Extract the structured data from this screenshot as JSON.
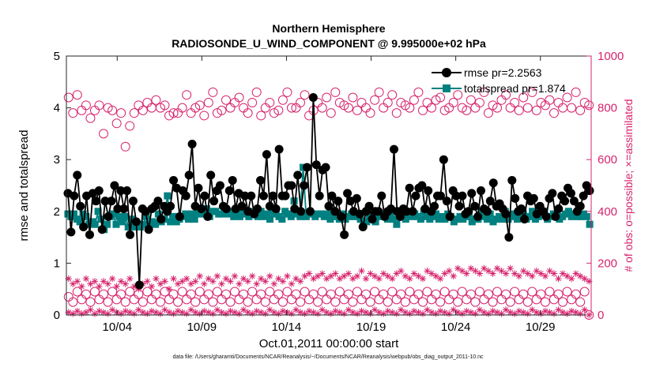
{
  "chart_data": {
    "type": "line",
    "title_line1": "Northern Hemisphere",
    "title_line2": "RADIOSONDE_U_WIND_COMPONENT @ 9.995000e+02 hPa",
    "xlabel": "Oct.01,2011 00:00:00 start",
    "ylabel_left": "rmse and totalspread",
    "ylabel_right": "# of obs: o=possible; ×=assimilated",
    "xlim": [
      0,
      124
    ],
    "ylim_left": [
      0,
      5
    ],
    "ylim_right": [
      0,
      1000
    ],
    "xticks": [
      12,
      32,
      52,
      72,
      92,
      112
    ],
    "xtick_labels": [
      "10/04",
      "10/09",
      "10/14",
      "10/19",
      "10/24",
      "10/29"
    ],
    "yticks_left": [
      "0",
      "1",
      "2",
      "3",
      "4",
      "5"
    ],
    "yticks_right": [
      "0",
      "200",
      "400",
      "600",
      "800",
      "1000"
    ],
    "legend": [
      "rmse pr=2.2563",
      "totalspread pr=1.874"
    ],
    "colors": {
      "rmse": "#000000",
      "spread": "#008080",
      "obs": "#d6246e"
    },
    "footer": "data file: /Users/gharamti/Documents/NCAR/Reanalysis/~/Documents/NCAR/Reanalysis/webpub/obs_diag_output_2011-10.nc",
    "series": [
      {
        "name": "rmse",
        "values": [
          2.35,
          1.6,
          2.3,
          2.7,
          2.1,
          1.7,
          2.3,
          1.55,
          2.35,
          2.2,
          2.4,
          1.65,
          2.2,
          1.9,
          2.2,
          2.5,
          2.05,
          2.4,
          2.05,
          2.4,
          1.55,
          2.2,
          1.8,
          0.58,
          2.05,
          2.0,
          1.65,
          2.05,
          2.1,
          2.2,
          1.85,
          2.1,
          2.0,
          2.1,
          2.6,
          2.45,
          1.9,
          2.4,
          2.3,
          2.7,
          3.3,
          2.1,
          2.45,
          2.05,
          2.3,
          1.9,
          2.7,
          2.2,
          2.4,
          2.5,
          2.1,
          2.05,
          2.4,
          2.6,
          2.05,
          2.35,
          2.1,
          2.3,
          2.0,
          2.3,
          1.95,
          2.05,
          2.6,
          2.3,
          3.1,
          2.1,
          2.3,
          2.05,
          3.2,
          2.3,
          2.3,
          2.5,
          2.5,
          2.05,
          2.7,
          2.0,
          2.5,
          2.85,
          2.0,
          4.2,
          2.9,
          2.3,
          2.8,
          2.85,
          2.1,
          2.3,
          2.0,
          2.2,
          1.9,
          1.55,
          2.35,
          2.2,
          2.0,
          2.25,
          1.95,
          1.7,
          2.0,
          2.1,
          1.85,
          2.0,
          2.0,
          2.3,
          1.9,
          2.0,
          2.05,
          3.2,
          2.0,
          1.9,
          2.05,
          2.0,
          2.45,
          2.0,
          2.3,
          2.45,
          2.5,
          2.05,
          2.4,
          2.0,
          2.1,
          2.3,
          2.3,
          3.0,
          2.2,
          1.9,
          2.4,
          2.3,
          2.1,
          2.3,
          1.95,
          2.0,
          2.35,
          2.1,
          1.9,
          2.4,
          2.05,
          2.0,
          2.2,
          2.55,
          2.1,
          2.15,
          2.05,
          1.95,
          1.5,
          2.6,
          2.25,
          2.0,
          2.05,
          1.85,
          2.3,
          2.2,
          2.25,
          1.95,
          2.1,
          2.0,
          1.9,
          2.25,
          2.35,
          1.9,
          2.05,
          2.3,
          2.2,
          2.45,
          2.35,
          2.2,
          2.0,
          2.1,
          2.3,
          2.5,
          2.4
        ]
      },
      {
        "name": "totalspread",
        "values": [
          1.95,
          1.9,
          1.95,
          1.85,
          1.8,
          1.95,
          1.9,
          1.75,
          1.8,
          1.75,
          2.0,
          1.85,
          1.65,
          1.75,
          1.9,
          1.95,
          1.75,
          1.9,
          1.8,
          1.9,
          1.7,
          1.85,
          1.7,
          1.75,
          1.7,
          1.75,
          1.9,
          1.75,
          1.8,
          1.75,
          1.95,
          1.8,
          1.85,
          2.3,
          1.8,
          1.9,
          1.8,
          1.85,
          1.9,
          1.95,
          1.85,
          1.95,
          1.85,
          1.95,
          2.05,
          1.95,
          2.05,
          1.9,
          2.0,
          2.0,
          1.95,
          1.95,
          2.05,
          1.95,
          2.0,
          1.9,
          1.95,
          1.9,
          2.05,
          1.95,
          1.9,
          1.95,
          2.0,
          1.9,
          2.0,
          1.9,
          1.95,
          1.85,
          2.0,
          1.95,
          1.9,
          1.85,
          2.0,
          1.95,
          1.9,
          2.2,
          1.95,
          1.9,
          2.85,
          1.9,
          1.95,
          1.95,
          1.9,
          1.95,
          1.95,
          1.9,
          1.95,
          1.85,
          1.95,
          1.9,
          1.85,
          1.95,
          1.85,
          1.9,
          1.95,
          1.9,
          1.95,
          1.85,
          1.75,
          1.8,
          1.9,
          1.85,
          1.8,
          1.9,
          1.95,
          1.9,
          1.85,
          1.95,
          1.85,
          1.75,
          1.9,
          1.95,
          1.85,
          1.95,
          1.9,
          1.95,
          1.9,
          1.85,
          2.0,
          1.9,
          1.85,
          1.9,
          1.95,
          1.85,
          1.9,
          1.85,
          1.95,
          1.9,
          1.8,
          1.85,
          1.9,
          1.85,
          1.9,
          1.95,
          1.8,
          1.85,
          1.85,
          2.0,
          1.9,
          1.85,
          1.95,
          1.8,
          1.85,
          1.9,
          1.85,
          2.0,
          1.85,
          1.9,
          1.95,
          1.85,
          1.9,
          1.95,
          1.85,
          1.9,
          2.0,
          1.85,
          1.9,
          1.95,
          2.0,
          1.85,
          1.9,
          1.95,
          1.9,
          1.85,
          1.9,
          1.95,
          2.0,
          1.9,
          1.95,
          1.9,
          1.9,
          1.95,
          1.9,
          1.75
        ]
      },
      {
        "name": "possible_upper",
        "values": [
          840,
          780,
          850,
          790,
          810,
          760,
          790,
          810,
          700,
          800,
          790,
          740,
          780,
          650,
          730,
          780,
          810,
          790,
          820,
          800,
          830,
          800,
          810,
          770,
          780,
          780,
          800,
          850,
          780,
          800,
          810,
          770,
          820,
          860,
          780,
          790,
          830,
          800,
          820,
          840,
          800,
          780,
          820,
          860,
          770,
          800,
          820,
          780,
          790,
          830,
          860,
          800,
          800,
          820,
          850,
          770,
          790,
          820,
          800,
          840,
          780,
          860,
          820,
          810,
          800,
          840,
          790,
          820,
          800,
          780,
          830,
          860,
          800,
          820,
          850,
          780,
          820,
          810,
          800,
          830,
          860,
          790,
          820,
          800,
          830,
          840,
          790,
          800,
          820,
          850,
          800,
          790,
          830,
          800,
          820,
          860,
          780,
          810,
          800,
          830,
          850,
          800,
          820,
          790,
          840,
          800,
          860,
          790,
          820,
          810,
          830,
          780,
          820,
          800,
          840,
          800,
          860,
          790,
          820,
          810
        ]
      },
      {
        "name": "possible_lower",
        "values": [
          70,
          50,
          90,
          60,
          80,
          50,
          90,
          60,
          80,
          50,
          90,
          60,
          80,
          50,
          90,
          60,
          80,
          50,
          90,
          60,
          80,
          50,
          90,
          60,
          80,
          50,
          90,
          60,
          80,
          50,
          90,
          60,
          80,
          50,
          90,
          60,
          80,
          50,
          90,
          60,
          80,
          50,
          90,
          60,
          80,
          50,
          90,
          60,
          80,
          50,
          90,
          60,
          80,
          50,
          90,
          60,
          80,
          50,
          90,
          60,
          80,
          50,
          90,
          60,
          80,
          50,
          90,
          60,
          80,
          50,
          90,
          60,
          80,
          50,
          90,
          60,
          80,
          50,
          90,
          60,
          80,
          50,
          90,
          60,
          80,
          50,
          90,
          60,
          80,
          50,
          90,
          60,
          80,
          50,
          90,
          60,
          80,
          50,
          90,
          60,
          80,
          50,
          90,
          60,
          80,
          50,
          90,
          60,
          80,
          50,
          90,
          60,
          80,
          50,
          90,
          60,
          80,
          50,
          90,
          0
        ]
      },
      {
        "name": "assimilated_upper",
        "values": [
          140,
          120,
          130,
          110,
          140,
          120,
          130,
          110,
          130,
          120,
          140,
          110,
          130,
          120,
          140,
          110,
          100,
          120,
          130,
          110,
          140,
          120,
          130,
          100,
          140,
          120,
          130,
          140,
          120,
          130,
          150,
          120,
          140,
          130,
          150,
          120,
          140,
          130,
          150,
          120,
          140,
          130,
          150,
          120,
          140,
          130,
          150,
          120,
          140,
          130,
          150,
          120,
          140,
          130,
          150,
          160,
          140,
          150,
          160,
          140,
          150,
          160,
          140,
          150,
          160,
          140,
          150,
          170,
          140,
          160,
          150,
          140,
          160,
          150,
          140,
          160,
          170,
          150,
          140,
          160,
          150,
          140,
          170,
          160,
          150,
          140,
          160,
          170,
          150,
          180,
          170,
          160,
          180,
          170,
          160,
          180,
          170,
          160,
          180,
          170,
          160,
          180,
          160,
          150,
          170,
          160,
          150,
          170,
          160,
          150,
          170,
          160,
          140,
          160,
          150,
          140,
          160,
          150,
          140,
          130
        ]
      },
      {
        "name": "assimilated_lower",
        "values": [
          10,
          5,
          15,
          5,
          10,
          20,
          5,
          15,
          10,
          5,
          20,
          10,
          5,
          15,
          10,
          5,
          20,
          10,
          5,
          15,
          10,
          5,
          20,
          10,
          5,
          15,
          10,
          5,
          20,
          10,
          5,
          15,
          10,
          5,
          20,
          10,
          5,
          15,
          10,
          5,
          20,
          10,
          5,
          15,
          10,
          5,
          20,
          10,
          5,
          15,
          10,
          5,
          20,
          10,
          5,
          15,
          10,
          5,
          20,
          10,
          5,
          15,
          10,
          5,
          20,
          10,
          5,
          15,
          10,
          5,
          20,
          10,
          5,
          15,
          10,
          5,
          20,
          10,
          5,
          15,
          10,
          5,
          20,
          10,
          5,
          15,
          10,
          5,
          20,
          10,
          5,
          15,
          10,
          5,
          20,
          10,
          5,
          15,
          10,
          5,
          20,
          10,
          5,
          15,
          10,
          5,
          20,
          10,
          5,
          15,
          10,
          5,
          20,
          10,
          5,
          15,
          10,
          5,
          20,
          0
        ]
      }
    ]
  }
}
